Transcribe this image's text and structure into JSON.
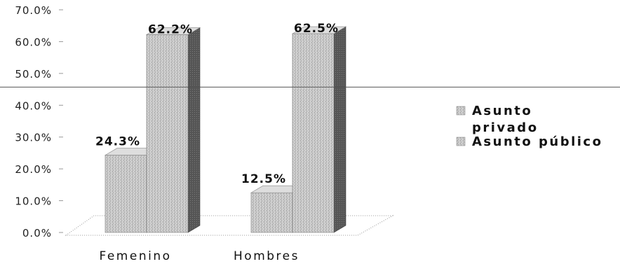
{
  "chart_data": {
    "type": "bar",
    "title": "",
    "xlabel": "",
    "ylabel": "",
    "categories": [
      "Femenino",
      "Hombres"
    ],
    "series": [
      {
        "name": "Asunto privado",
        "values": [
          24.3,
          12.5
        ],
        "labels": [
          "24.3%",
          "12.5%"
        ]
      },
      {
        "name": "Asunto público",
        "values": [
          62.2,
          62.5
        ],
        "labels": [
          "62.2%",
          "62.5%"
        ]
      }
    ],
    "ylim": [
      0,
      70
    ],
    "y_ticks": [
      "0.0%",
      "10.0%",
      "20.0%",
      "30.0%",
      "40.0%",
      "50.0%",
      "60.0%",
      "70.0%"
    ],
    "legend_position": "right",
    "style": "3d-columns",
    "reference_line": 45.7,
    "colors": {
      "front": "#c4c4c4",
      "top": "#dedede",
      "side": "#5a5a5a",
      "baseline": "#888888"
    }
  }
}
